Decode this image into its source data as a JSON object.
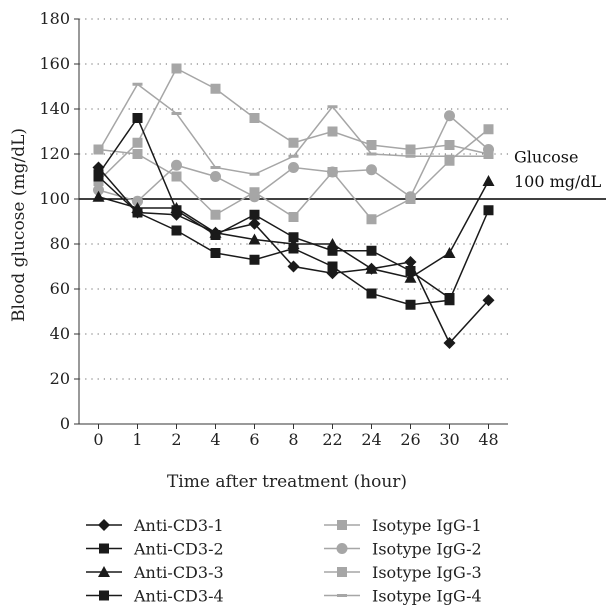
{
  "chart_data": {
    "type": "line",
    "xlabel": "Time after treatment (hour)",
    "ylabel": "Blood glucose (mg/dL)",
    "categories": [
      "0",
      "1",
      "2",
      "4",
      "6",
      "8",
      "22",
      "24",
      "26",
      "30",
      "48"
    ],
    "ylim": [
      0,
      180
    ],
    "yticks": [
      0,
      20,
      40,
      60,
      80,
      100,
      120,
      140,
      160,
      180
    ],
    "grid": "dotted horizontal",
    "legend_position": "bottom",
    "reference_line": {
      "value": 100,
      "label_line1": "Glucose",
      "label_line2": "100 mg/dL"
    },
    "colors": {
      "black": "#1a1a1a",
      "gray": "#a6a6a6",
      "reference": "#000000"
    },
    "series": [
      {
        "name": "Anti-CD3-1",
        "marker": "diamond",
        "color": "#1a1a1a",
        "values": [
          114,
          94,
          93,
          85,
          89,
          70,
          67,
          69,
          72,
          36,
          55
        ]
      },
      {
        "name": "Anti-CD3-2",
        "marker": "square",
        "color": "#1a1a1a",
        "values": [
          110,
          94,
          86,
          76,
          73,
          78,
          70,
          58,
          53,
          55,
          95
        ]
      },
      {
        "name": "Anti-CD3-3",
        "marker": "triangle",
        "color": "#1a1a1a",
        "values": [
          101,
          96,
          96,
          85,
          82,
          80,
          80,
          69,
          65,
          76,
          108
        ]
      },
      {
        "name": "Anti-CD3-4",
        "marker": "square",
        "color": "#1a1a1a",
        "values": [
          111,
          136,
          95,
          84,
          93,
          83,
          77,
          77,
          68,
          56,
          null
        ]
      },
      {
        "name": "Isotype IgG-1",
        "marker": "square",
        "color": "#a6a6a6",
        "values": [
          108,
          125,
          158,
          149,
          136,
          125,
          130,
          124,
          122,
          124,
          120
        ]
      },
      {
        "name": "Isotype IgG-2",
        "marker": "circle",
        "color": "#a6a6a6",
        "values": [
          104,
          99,
          115,
          110,
          101,
          114,
          112,
          113,
          101,
          137,
          122
        ]
      },
      {
        "name": "Isotype IgG-3",
        "marker": "square",
        "color": "#a6a6a6",
        "values": [
          122,
          120,
          110,
          93,
          103,
          92,
          112,
          91,
          100,
          117,
          131
        ]
      },
      {
        "name": "Isotype IgG-4",
        "marker": "dash",
        "color": "#a6a6a6",
        "values": [
          121,
          151,
          138,
          114,
          111,
          119,
          141,
          120,
          119,
          119,
          119
        ]
      }
    ]
  }
}
